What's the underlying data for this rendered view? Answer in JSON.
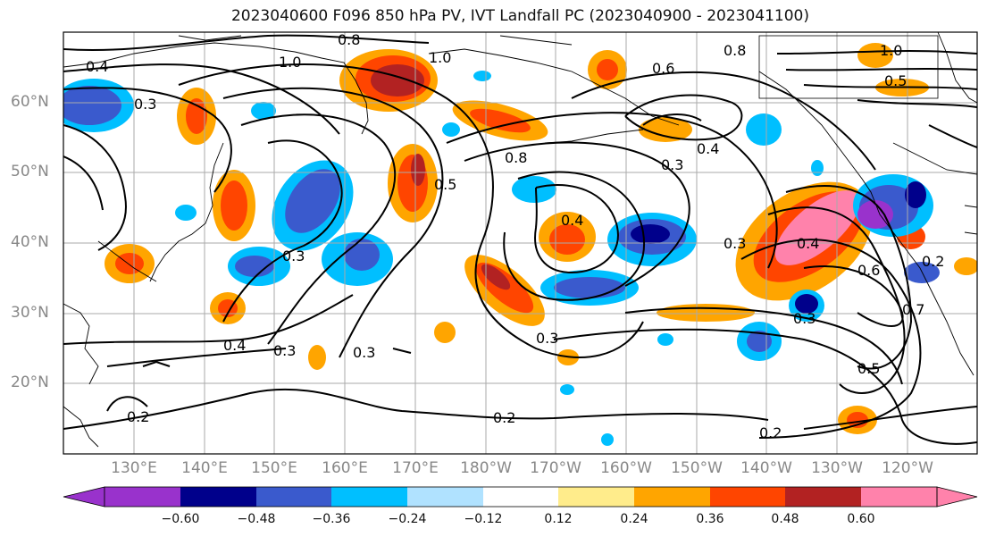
{
  "title": "2023040600 F096 850 hPa PV, IVT Landfall PC (2023040900 - 2023041100)",
  "lat_labels": [
    "60°N",
    "50°N",
    "40°N",
    "30°N",
    "20°N"
  ],
  "lon_labels": [
    "130°E",
    "140°E",
    "150°E",
    "160°E",
    "170°E",
    "180°W",
    "170°W",
    "160°W",
    "150°W",
    "140°W",
    "130°W",
    "120°W"
  ],
  "contour_labels": [
    "0.4",
    "0.3",
    "1.0",
    "0.8",
    "1.0",
    "0.6",
    "1.0",
    "0.5",
    "0.8",
    "0.4",
    "0.3",
    "0.8",
    "0.5",
    "0.4",
    "0.3",
    "0.3",
    "0.4",
    "0.3",
    "0.3",
    "0.3",
    "0.2",
    "0.2",
    "0.2",
    "0.6",
    "0.4",
    "0.3",
    "0.5",
    "0.7",
    "0.2"
  ],
  "colorbar": {
    "ticks": [
      "−0.60",
      "−0.48",
      "−0.36",
      "−0.24",
      "−0.12",
      "0.12",
      "0.24",
      "0.36",
      "0.48",
      "0.60"
    ],
    "colors": [
      "#9932cc",
      "#00008b",
      "#3a5acd",
      "#00bfff",
      "#b0e2ff",
      "#ffffff",
      "#ffec8b",
      "#ffa500",
      "#ff4500",
      "#b22222",
      "#ff82ab"
    ]
  }
}
